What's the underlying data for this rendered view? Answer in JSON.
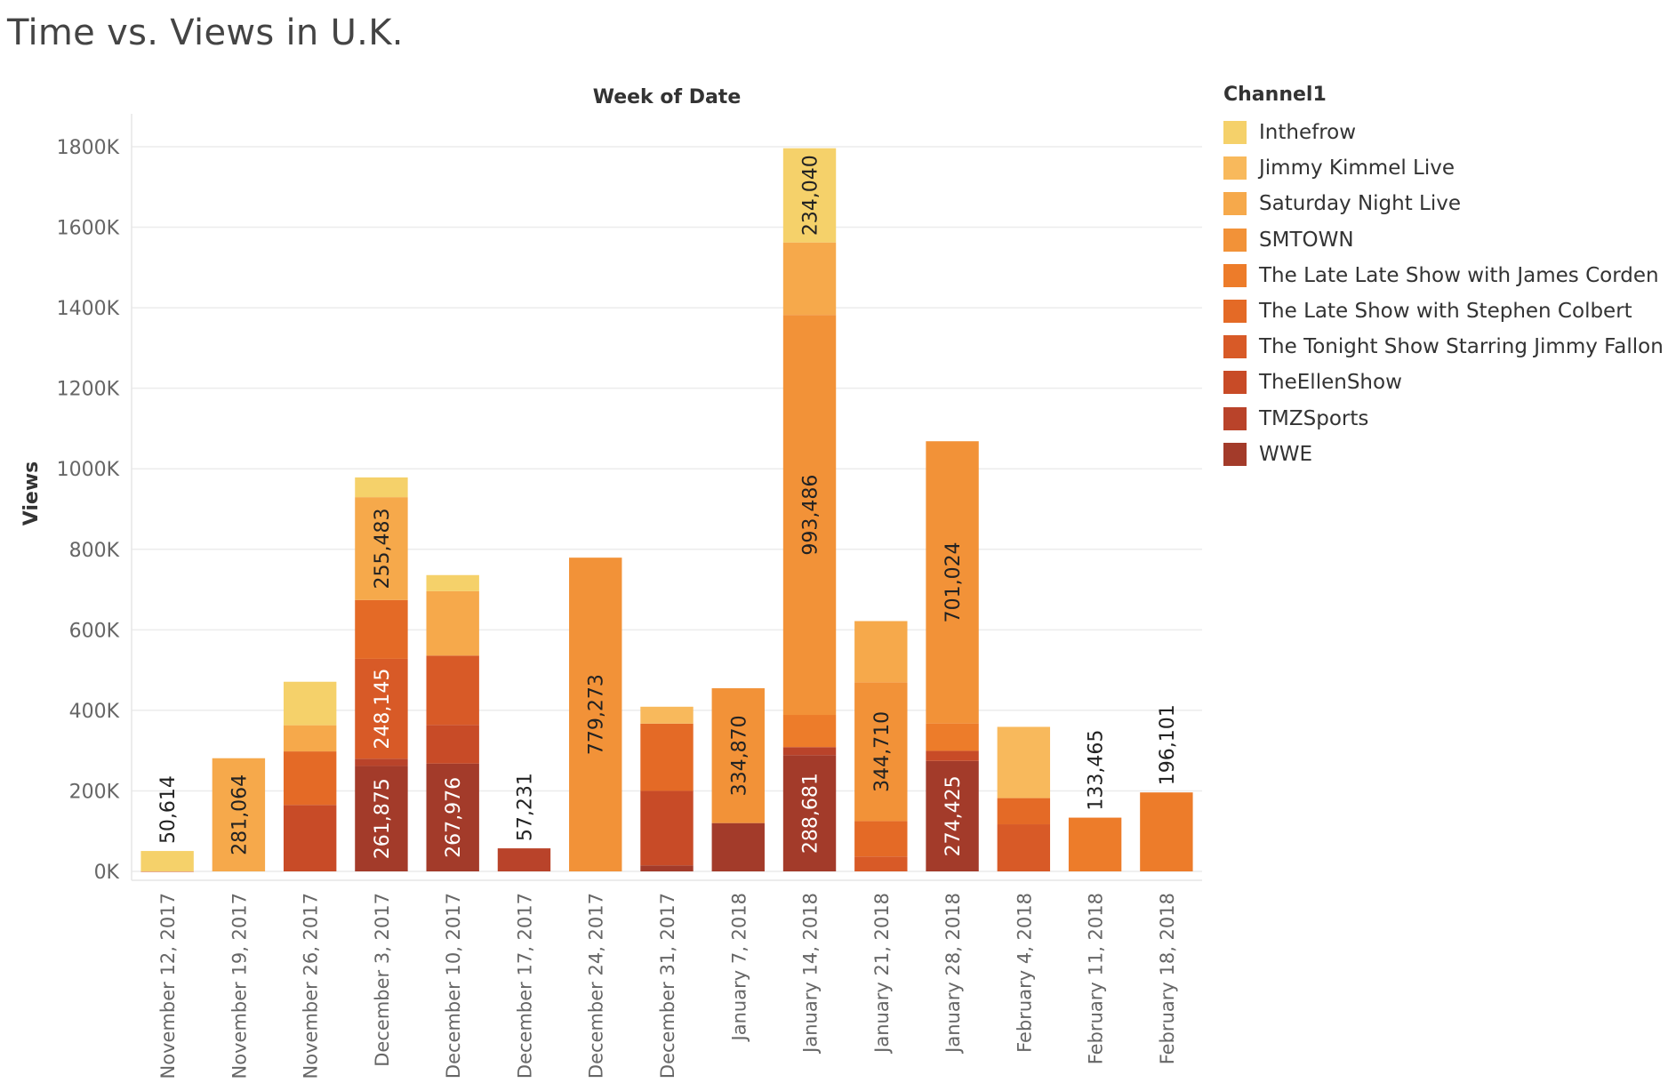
{
  "chart_data": {
    "type": "bar",
    "stacked": true,
    "title": "Time vs. Views in U.K.",
    "xlabel": "Week of Date",
    "ylabel": "Views",
    "ylim": [
      0,
      1800000
    ],
    "yticks": [
      0,
      200000,
      400000,
      600000,
      800000,
      1000000,
      1200000,
      1400000,
      1600000,
      1800000
    ],
    "ytick_labels": [
      "0K",
      "200K",
      "400K",
      "600K",
      "800K",
      "1000K",
      "1200K",
      "1400K",
      "1600K",
      "1800K"
    ],
    "grid": true,
    "legend_title": "Channel1",
    "legend_position": "right",
    "categories": [
      "November 12, 2017",
      "November 19, 2017",
      "November 26, 2017",
      "December 3, 2017",
      "December 10, 2017",
      "December 17, 2017",
      "December 24, 2017",
      "December 31, 2017",
      "January 7, 2018",
      "January 14, 2018",
      "January 21, 2018",
      "January 28, 2018",
      "February 4, 2018",
      "February 11, 2018",
      "February 18, 2018"
    ],
    "series": [
      {
        "name": "WWE",
        "color": "#a33b2a",
        "values": [
          0,
          0,
          0,
          261875,
          267976,
          0,
          0,
          15000,
          120000,
          288681,
          0,
          274425,
          0,
          0,
          0
        ]
      },
      {
        "name": "TMZSports",
        "color": "#b9432a",
        "values": [
          0,
          0,
          0,
          18000,
          0,
          57231,
          0,
          0,
          0,
          20000,
          0,
          0,
          0,
          0,
          0
        ]
      },
      {
        "name": "TheEllenShow",
        "color": "#c84b27",
        "values": [
          0,
          0,
          165000,
          0,
          96000,
          0,
          0,
          185000,
          0,
          0,
          0,
          25000,
          0,
          0,
          0
        ]
      },
      {
        "name": "The Tonight Show Starring Jimmy Fallon",
        "color": "#d85a27",
        "values": [
          50,
          0,
          0,
          248145,
          172000,
          0,
          0,
          0,
          0,
          0,
          37000,
          0,
          117000,
          0,
          0
        ]
      },
      {
        "name": "The Late Show with Stephen Colbert",
        "color": "#e46a26",
        "values": [
          0,
          0,
          133000,
          146000,
          0,
          0,
          0,
          167000,
          0,
          0,
          88000,
          0,
          65000,
          0,
          0
        ]
      },
      {
        "name": "The Late Late Show with James Corden",
        "color": "#ed7c2a",
        "values": [
          0,
          0,
          0,
          0,
          0,
          0,
          0,
          0,
          0,
          80000,
          0,
          68000,
          0,
          133465,
          196101
        ]
      },
      {
        "name": "SMTOWN",
        "color": "#f29238",
        "values": [
          0,
          0,
          0,
          0,
          0,
          0,
          779273,
          0,
          334870,
          993486,
          344710,
          701024,
          0,
          0,
          0
        ]
      },
      {
        "name": "Saturday Night Live",
        "color": "#f6a94b",
        "values": [
          0,
          281064,
          65000,
          255483,
          160000,
          0,
          0,
          0,
          0,
          180000,
          152000,
          0,
          0,
          0,
          0
        ]
      },
      {
        "name": "Jimmy Kimmel Live",
        "color": "#f8b95c",
        "values": [
          0,
          0,
          0,
          0,
          0,
          0,
          0,
          42000,
          0,
          0,
          0,
          0,
          177000,
          0,
          0
        ]
      },
      {
        "name": "Inthefrow",
        "color": "#f5d16a",
        "values": [
          50614,
          0,
          108000,
          49000,
          40000,
          0,
          0,
          0,
          0,
          234040,
          0,
          0,
          0,
          0,
          0
        ]
      }
    ],
    "data_labels": [
      {
        "category": 0,
        "series": "Inthefrow",
        "text": "50,614",
        "outside": true
      },
      {
        "category": 1,
        "series": "Saturday Night Live",
        "text": "281,064"
      },
      {
        "category": 3,
        "series": "WWE",
        "text": "261,875"
      },
      {
        "category": 3,
        "series": "The Tonight Show Starring Jimmy Fallon",
        "text": "248,145"
      },
      {
        "category": 3,
        "series": "Saturday Night Live",
        "text": "255,483"
      },
      {
        "category": 4,
        "series": "WWE",
        "text": "267,976"
      },
      {
        "category": 5,
        "series": "TMZSports",
        "text": "57,231",
        "outside": true
      },
      {
        "category": 6,
        "series": "SMTOWN",
        "text": "779,273"
      },
      {
        "category": 8,
        "series": "SMTOWN",
        "text": "334,870"
      },
      {
        "category": 9,
        "series": "WWE",
        "text": "288,681"
      },
      {
        "category": 9,
        "series": "SMTOWN",
        "text": "993,486"
      },
      {
        "category": 9,
        "series": "Inthefrow",
        "text": "234,040"
      },
      {
        "category": 10,
        "series": "SMTOWN",
        "text": "344,710"
      },
      {
        "category": 11,
        "series": "WWE",
        "text": "274,425"
      },
      {
        "category": 11,
        "series": "SMTOWN",
        "text": "701,024"
      },
      {
        "category": 13,
        "series": "The Late Late Show with James Corden",
        "text": "133,465",
        "outside": true
      },
      {
        "category": 14,
        "series": "The Late Late Show with James Corden",
        "text": "196,101",
        "outside": true
      }
    ]
  },
  "legend": {
    "title": "Channel1",
    "items": [
      {
        "label": "Inthefrow",
        "color": "#f5d16a"
      },
      {
        "label": "Jimmy Kimmel Live",
        "color": "#f8b95c"
      },
      {
        "label": "Saturday Night Live",
        "color": "#f6a94b"
      },
      {
        "label": "SMTOWN",
        "color": "#f29238"
      },
      {
        "label": "The Late Late Show with James Corden",
        "color": "#ed7c2a"
      },
      {
        "label": "The Late Show with Stephen Colbert",
        "color": "#e46a26"
      },
      {
        "label": "The Tonight Show Starring Jimmy Fallon",
        "color": "#d85a27"
      },
      {
        "label": "TheEllenShow",
        "color": "#c84b27"
      },
      {
        "label": "TMZSports",
        "color": "#b9432a"
      },
      {
        "label": "WWE",
        "color": "#a33b2a"
      }
    ]
  }
}
